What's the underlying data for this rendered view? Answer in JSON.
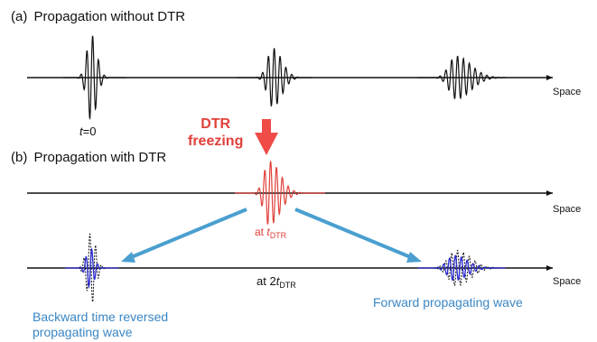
{
  "panel_a": {
    "letter": "(a)",
    "title": "Propagation without DTR",
    "space_label": "Space",
    "t0_var": "t",
    "t0_rest": "=0"
  },
  "panel_b": {
    "letter": "(b)",
    "title": "Propagation with DTR",
    "space_label_1": "Space",
    "space_label_2": "Space",
    "dtr_line1": "DTR",
    "dtr_line2": "freezing",
    "at_label": "at ",
    "at_var": "t",
    "at_sub": "DTR",
    "at2_label": "at 2",
    "at2_var": "t",
    "at2_sub": "DTR",
    "backward_line1": "Backward time reversed",
    "backward_line2": "propagating wave",
    "forward_label": "Forward propagating wave"
  },
  "colors": {
    "wave_black": "#111111",
    "dtr_red": "#e0403a",
    "arrow_red": "#ef4b47",
    "arrow_blue": "#4a9fcf",
    "wave_blue": "#2a2ad0",
    "text_blue": "#3a86c4"
  },
  "icons": {
    "down_arrow": "red-down-arrow-icon",
    "fan_arrow_left": "blue-arrow-left-icon",
    "fan_arrow_right": "blue-arrow-right-icon"
  }
}
